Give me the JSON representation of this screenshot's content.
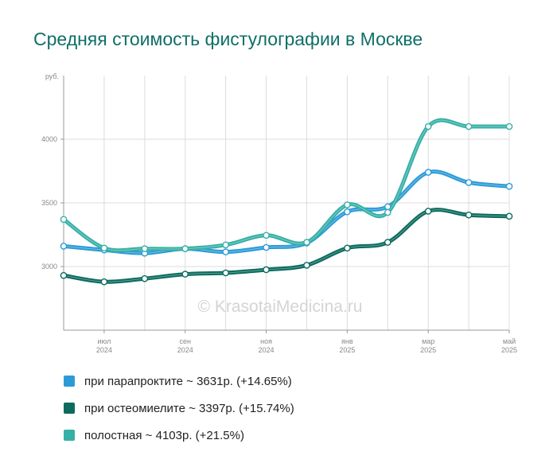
{
  "chart_data": {
    "type": "line",
    "title": "Средняя стоимость фистулографии в Москве",
    "ylabel": "руб.",
    "ylim": [
      2500,
      4500
    ],
    "yticks": [
      3000,
      3500,
      4000
    ],
    "x_tick_labels": [
      {
        "month": "июл",
        "year": "2024"
      },
      {
        "month": "сен",
        "year": "2024"
      },
      {
        "month": "ноя",
        "year": "2024"
      },
      {
        "month": "янв",
        "year": "2025"
      },
      {
        "month": "мар",
        "year": "2025"
      },
      {
        "month": "май",
        "year": "2025"
      }
    ],
    "grid": true,
    "legend_position": "bottom",
    "series": [
      {
        "name": "при парапроктите",
        "color": "#2b9bd8",
        "values": [
          3160,
          3130,
          3105,
          3140,
          3115,
          3150,
          3185,
          3430,
          3470,
          3740,
          3660,
          3630
        ]
      },
      {
        "name": "при остеомиелите",
        "color": "#0b6b5e",
        "values": [
          2930,
          2880,
          2905,
          2940,
          2950,
          2975,
          3010,
          3145,
          3190,
          3435,
          3405,
          3395
        ]
      },
      {
        "name": "полостная",
        "color": "#36b0a6",
        "values": [
          3370,
          3145,
          3140,
          3140,
          3170,
          3245,
          3190,
          3485,
          3425,
          4100,
          4100,
          4100
        ]
      }
    ]
  },
  "legend": [
    {
      "label": "при парапроктите ~ 3631р. (+14.65%)",
      "color": "#2b9bd8"
    },
    {
      "label": "при остеомиелите ~ 3397р. (+15.74%)",
      "color": "#0b6b5e"
    },
    {
      "label": "полостная ~ 4103р. (+21.5%)",
      "color": "#36b0a6"
    }
  ],
  "watermark": "© KrasotaiMedicina.ru"
}
